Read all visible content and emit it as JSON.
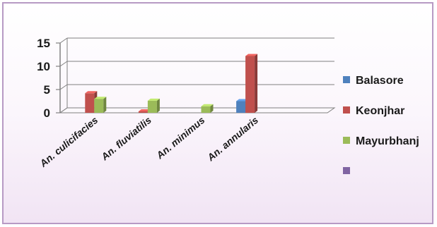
{
  "chart_data": {
    "type": "bar",
    "title": "",
    "xlabel": "",
    "ylabel": "",
    "categories": [
      "An. culicifacies",
      "An. fluviatilis",
      "An. minimus",
      "An. annularis",
      ""
    ],
    "series": [
      {
        "name": "Balasore",
        "color": "#4f81bd",
        "values": [
          0,
          0,
          0,
          2.5,
          0
        ]
      },
      {
        "name": "Keonjhar",
        "color": "#c0504d",
        "values": [
          4.2,
          0.3,
          0,
          12.2,
          0
        ]
      },
      {
        "name": "Mayurbhanj",
        "color": "#9bbb59",
        "values": [
          3.0,
          2.6,
          1.4,
          0,
          0
        ]
      },
      {
        "name": "",
        "color": "#8064a2",
        "values": [
          0,
          0,
          0,
          0,
          0
        ]
      }
    ],
    "yticks": [
      0,
      5,
      10,
      15
    ],
    "ylim": [
      0,
      15
    ],
    "grid": true,
    "legend": "right"
  }
}
